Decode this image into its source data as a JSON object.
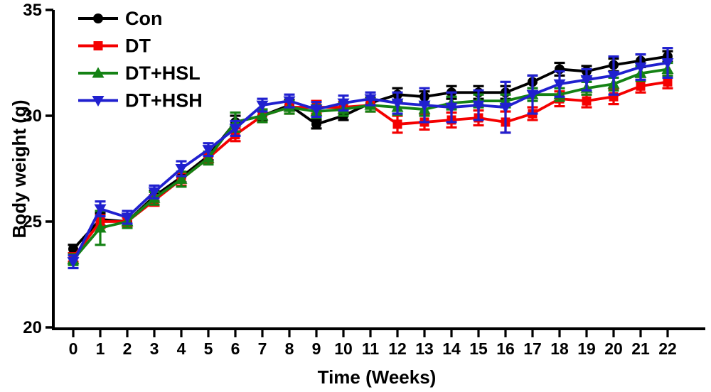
{
  "figure": {
    "background": "#ffffff",
    "axis_color": "#000000"
  },
  "chart_data": {
    "type": "line",
    "title": "",
    "xlabel": "Time (Weeks)",
    "ylabel": "Body weight (g)",
    "x": [
      0,
      1,
      2,
      3,
      4,
      5,
      6,
      7,
      8,
      9,
      10,
      11,
      12,
      13,
      14,
      15,
      16,
      17,
      18,
      19,
      20,
      21,
      22
    ],
    "xlim": [
      -0.8,
      23.4
    ],
    "ylim": [
      20,
      35
    ],
    "y_ticks": [
      20,
      25,
      30,
      35
    ],
    "grid": false,
    "legend_position": "top-left-inside",
    "error_bar_style": "sem-caps",
    "series": [
      {
        "name": "Con",
        "color": "#000000",
        "marker": "circle",
        "values": [
          23.7,
          25.1,
          25.0,
          26.2,
          27.1,
          28.1,
          29.7,
          30.0,
          30.5,
          29.6,
          30.0,
          30.6,
          31.0,
          30.9,
          31.1,
          31.1,
          31.1,
          31.6,
          32.2,
          32.1,
          32.4,
          32.6,
          32.8
        ],
        "errors": [
          0.2,
          0.3,
          0.2,
          0.25,
          0.25,
          0.2,
          0.3,
          0.25,
          0.25,
          0.2,
          0.2,
          0.25,
          0.3,
          0.25,
          0.3,
          0.3,
          0.3,
          0.3,
          0.3,
          0.25,
          0.3,
          0.3,
          0.25
        ]
      },
      {
        "name": "DT",
        "color": "#f40000",
        "marker": "square",
        "values": [
          23.3,
          25.0,
          25.0,
          26.0,
          27.0,
          28.0,
          29.1,
          30.0,
          30.4,
          30.4,
          30.4,
          30.5,
          29.6,
          29.7,
          29.8,
          29.9,
          29.7,
          30.1,
          30.8,
          30.7,
          30.9,
          31.4,
          31.6
        ],
        "errors": [
          0.2,
          0.3,
          0.2,
          0.25,
          0.3,
          0.25,
          0.3,
          0.3,
          0.3,
          0.3,
          0.25,
          0.3,
          0.4,
          0.35,
          0.35,
          0.35,
          0.5,
          0.3,
          0.35,
          0.3,
          0.35,
          0.3,
          0.3
        ]
      },
      {
        "name": "DT+HSL",
        "color": "#148214",
        "marker": "triangle-up",
        "values": [
          23.2,
          24.7,
          25.0,
          26.1,
          27.0,
          28.0,
          29.7,
          30.0,
          30.4,
          30.2,
          30.3,
          30.5,
          30.4,
          30.3,
          30.6,
          30.7,
          30.7,
          31.0,
          31.0,
          31.3,
          31.5,
          32.0,
          32.2
        ],
        "errors": [
          0.25,
          0.8,
          0.3,
          0.3,
          0.35,
          0.3,
          0.45,
          0.3,
          0.3,
          0.3,
          0.3,
          0.3,
          0.35,
          0.3,
          0.3,
          0.3,
          0.3,
          0.3,
          0.3,
          0.3,
          0.3,
          0.35,
          0.3
        ]
      },
      {
        "name": "DT+HSH",
        "color": "#2020cf",
        "marker": "triangle-down",
        "values": [
          23.1,
          25.6,
          25.2,
          26.4,
          27.5,
          28.4,
          29.4,
          30.5,
          30.7,
          30.3,
          30.6,
          30.8,
          30.6,
          30.5,
          30.4,
          30.5,
          30.4,
          31.0,
          31.5,
          31.7,
          31.9,
          32.3,
          32.5
        ],
        "errors": [
          0.3,
          0.35,
          0.3,
          0.3,
          0.35,
          0.3,
          0.35,
          0.3,
          0.3,
          0.35,
          0.35,
          0.3,
          0.5,
          0.8,
          0.7,
          0.7,
          1.2,
          0.9,
          0.6,
          0.5,
          0.9,
          0.6,
          0.7
        ]
      }
    ]
  }
}
